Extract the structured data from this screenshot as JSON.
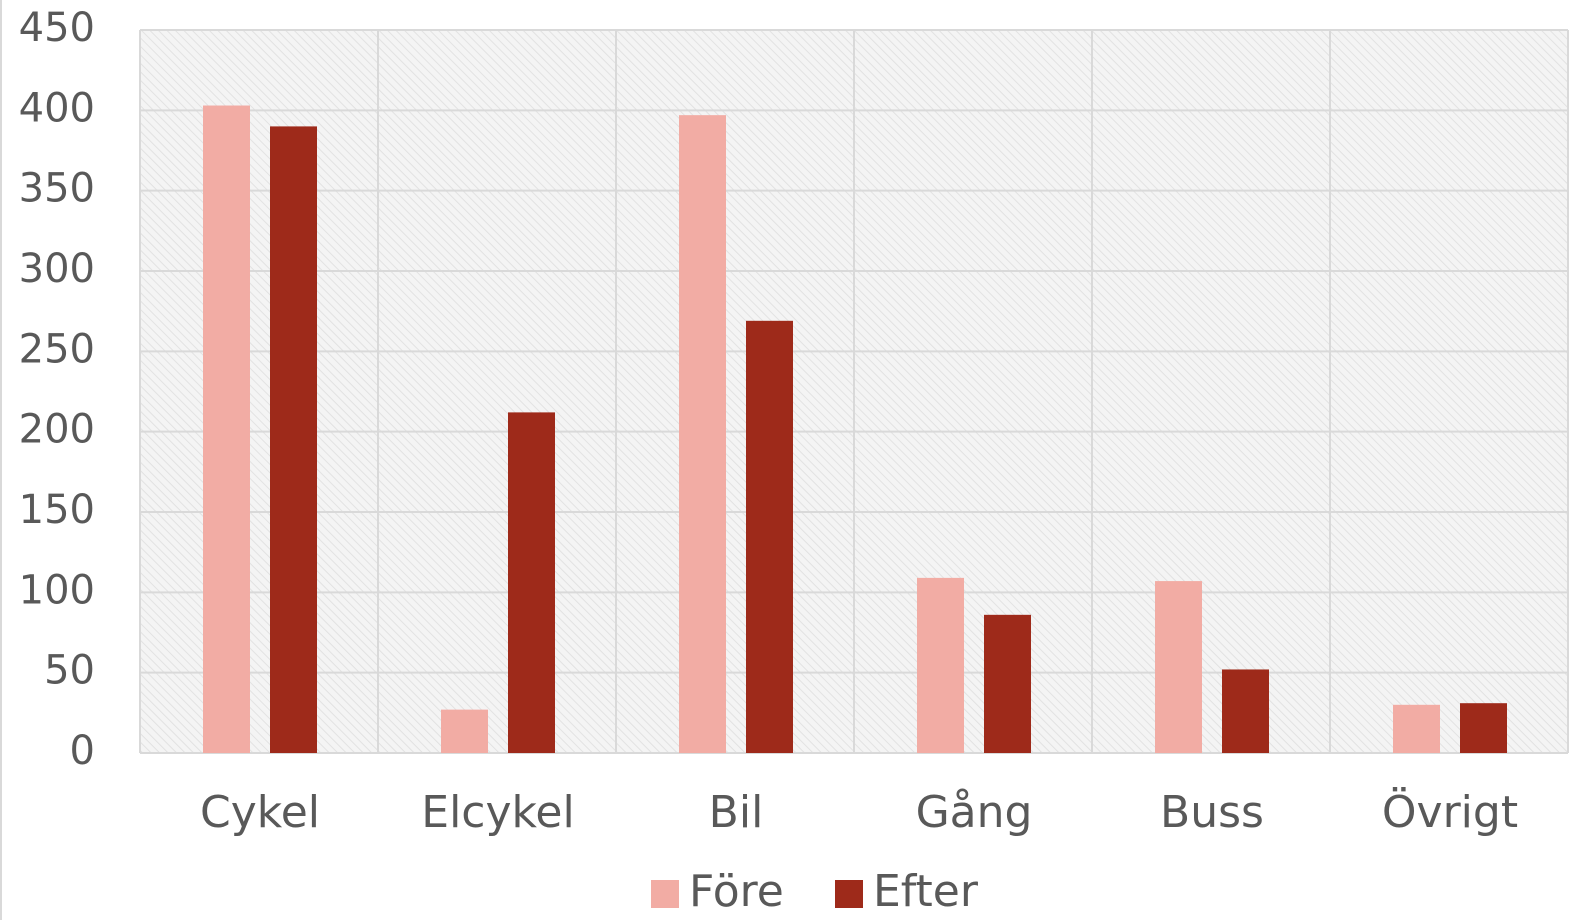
{
  "chart_data": {
    "type": "bar",
    "categories": [
      "Cykel",
      "Elcykel",
      "Bil",
      "Gång",
      "Buss",
      "Övrigt"
    ],
    "series": [
      {
        "name": "Före",
        "color": "#f2aca4",
        "values": [
          403,
          27,
          397,
          109,
          107,
          30
        ]
      },
      {
        "name": "Efter",
        "color": "#9e2a1a",
        "values": [
          390,
          212,
          269,
          86,
          52,
          31
        ]
      }
    ],
    "ylim": [
      0,
      450
    ],
    "yticks": [
      0,
      50,
      100,
      150,
      200,
      250,
      300,
      350,
      400,
      450
    ],
    "grid": true,
    "legend": "bottom"
  }
}
